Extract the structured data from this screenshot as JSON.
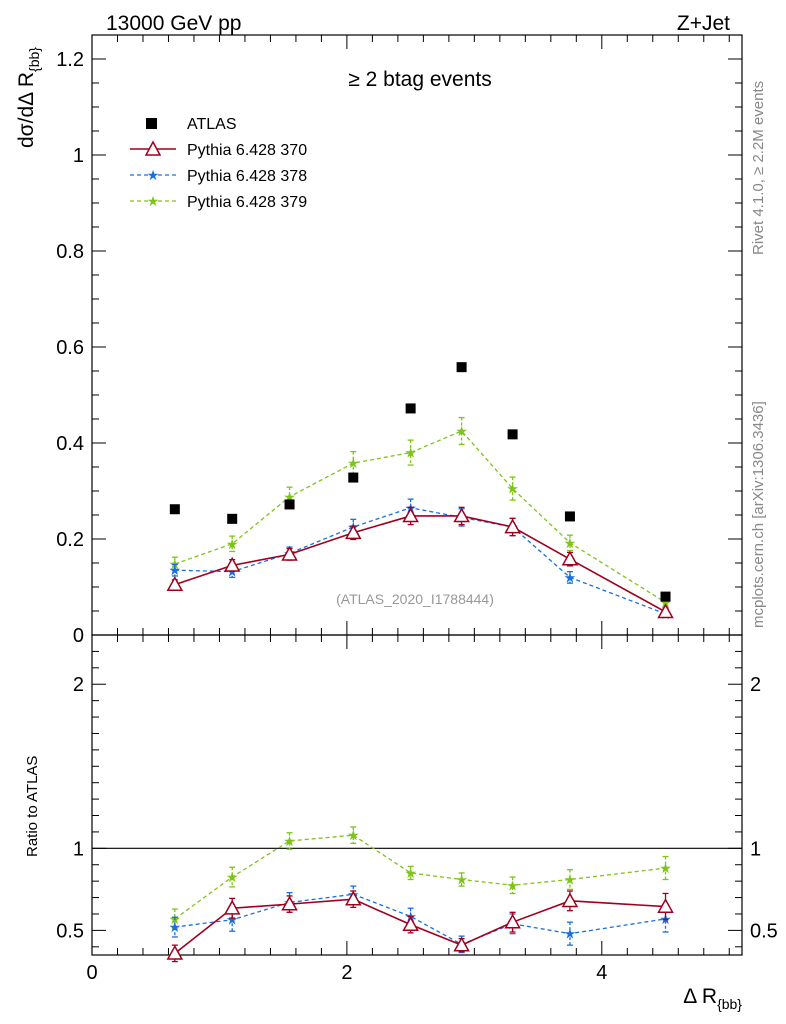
{
  "header": {
    "left_label": "13000 GeV pp",
    "right_label": "Z+Jet"
  },
  "side_text": {
    "rivet": "Rivet 4.1.0, ≥ 2.2M events",
    "mcplots": "mcplots.cern.ch [arXiv:1306.3436]"
  },
  "colors": {
    "atlas": "#000000",
    "pythia370": "#a0001e",
    "pythia378": "#1a6fe0",
    "pythia379": "#7fc41b",
    "watermark": "#999999",
    "side_text": "#888888"
  },
  "chart_data": [
    {
      "type": "scatter",
      "panel": "main",
      "title": "≥ 2 btag events",
      "ylabel_main": "dσ/dΔ R",
      "ylabel_sub": "{bb}",
      "xlabel": "",
      "watermark": "(ATLAS_2020_I1788444)",
      "xlim": [
        0,
        5.1
      ],
      "ylim": [
        0,
        1.25
      ],
      "yticks": [
        0,
        0.2,
        0.4,
        0.6,
        0.8,
        1,
        1.2
      ],
      "ytick_labels": [
        "0",
        "0.2",
        "0.4",
        "0.6",
        "0.8",
        "1",
        "1.2"
      ],
      "x": [
        0.65,
        1.1,
        1.55,
        2.05,
        2.5,
        2.9,
        3.3,
        3.75,
        4.5
      ],
      "legend_position": "top-left",
      "series": [
        {
          "name": "ATLAS",
          "style": "data",
          "values": [
            0.262,
            0.242,
            0.272,
            0.328,
            0.472,
            0.558,
            0.418,
            0.247,
            0.08
          ]
        },
        {
          "name": "Pythia 6.428 370",
          "style": "solid-triangle",
          "values": [
            0.105,
            0.145,
            0.168,
            0.213,
            0.248,
            0.248,
            0.225,
            0.158,
            0.048
          ],
          "errors": [
            0.01,
            0.012,
            0.012,
            0.014,
            0.018,
            0.018,
            0.018,
            0.014,
            0.008
          ]
        },
        {
          "name": "Pythia 6.428 378",
          "style": "dashed-star",
          "values": [
            0.135,
            0.132,
            0.17,
            0.225,
            0.265,
            0.245,
            0.225,
            0.12,
            0.044
          ],
          "errors": [
            0.012,
            0.012,
            0.013,
            0.016,
            0.018,
            0.018,
            0.018,
            0.012,
            0.007
          ]
        },
        {
          "name": "Pythia 6.428 379",
          "style": "dashed-star",
          "values": [
            0.148,
            0.19,
            0.288,
            0.358,
            0.38,
            0.425,
            0.305,
            0.192,
            0.068
          ],
          "errors": [
            0.014,
            0.016,
            0.02,
            0.024,
            0.026,
            0.028,
            0.024,
            0.016,
            0.009
          ]
        }
      ]
    },
    {
      "type": "line",
      "panel": "ratio",
      "ylabel": "Ratio to ATLAS",
      "xlabel_main": "Δ R",
      "xlabel_sub": "{bb}",
      "xlim": [
        0,
        5.1
      ],
      "ylim": [
        0.35,
        2.3
      ],
      "reference": 1,
      "yticks": [
        0.5,
        1,
        2
      ],
      "ytick_labels": [
        "0.5",
        "1",
        "2"
      ],
      "xticks": [
        0,
        2,
        4
      ],
      "xtick_labels": [
        "0",
        "2",
        "4"
      ],
      "x": [
        0.65,
        1.1,
        1.55,
        2.05,
        2.5,
        2.9,
        3.3,
        3.75,
        4.5
      ],
      "series": [
        {
          "name": "Pythia 6.428 370",
          "values": [
            0.36,
            0.635,
            0.66,
            0.69,
            0.535,
            0.41,
            0.55,
            0.68,
            0.645
          ],
          "errors": [
            0.05,
            0.06,
            0.05,
            0.05,
            0.05,
            0.04,
            0.06,
            0.06,
            0.08
          ]
        },
        {
          "name": "Pythia 6.428 378",
          "values": [
            0.52,
            0.565,
            0.67,
            0.72,
            0.585,
            0.415,
            0.54,
            0.48,
            0.57
          ],
          "errors": [
            0.06,
            0.07,
            0.06,
            0.05,
            0.05,
            0.05,
            0.06,
            0.07,
            0.08
          ]
        },
        {
          "name": "Pythia 6.428 379",
          "values": [
            0.57,
            0.825,
            1.045,
            1.08,
            0.85,
            0.81,
            0.775,
            0.81,
            0.88
          ],
          "errors": [
            0.06,
            0.06,
            0.05,
            0.05,
            0.04,
            0.04,
            0.05,
            0.06,
            0.07
          ]
        }
      ]
    }
  ]
}
